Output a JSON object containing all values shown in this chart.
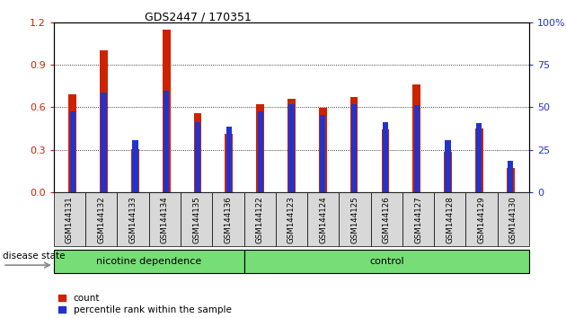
{
  "title": "GDS2447 / 170351",
  "categories": [
    "GSM144131",
    "GSM144132",
    "GSM144133",
    "GSM144134",
    "GSM144135",
    "GSM144136",
    "GSM144122",
    "GSM144123",
    "GSM144124",
    "GSM144125",
    "GSM144126",
    "GSM144127",
    "GSM144128",
    "GSM144129",
    "GSM144130"
  ],
  "red_values": [
    0.69,
    1.0,
    0.305,
    1.15,
    0.56,
    0.41,
    0.62,
    0.66,
    0.595,
    0.67,
    0.445,
    0.76,
    0.285,
    0.45,
    0.17
  ],
  "blue_values_pct": [
    47.5,
    58.5,
    30.5,
    59.5,
    41.5,
    38.5,
    47.5,
    52.0,
    45.5,
    52.0,
    41.5,
    51.5,
    30.5,
    41.0,
    18.5
  ],
  "red_color": "#cc2200",
  "blue_color": "#2233cc",
  "ylim_left": [
    0,
    1.2
  ],
  "ylim_right": [
    0,
    100
  ],
  "yticks_left": [
    0,
    0.3,
    0.6,
    0.9,
    1.2
  ],
  "yticks_right": [
    0,
    25,
    50,
    75,
    100
  ],
  "group1_label": "nicotine dependence",
  "group2_label": "control",
  "group1_count": 6,
  "group2_count": 9,
  "disease_state_label": "disease state",
  "legend_red": "count",
  "legend_blue": "percentile rank within the sample",
  "group_color": "#77dd77",
  "xticklabel_bg": "#d8d8d8",
  "bar_width": 0.25,
  "blue_bar_width": 0.18
}
